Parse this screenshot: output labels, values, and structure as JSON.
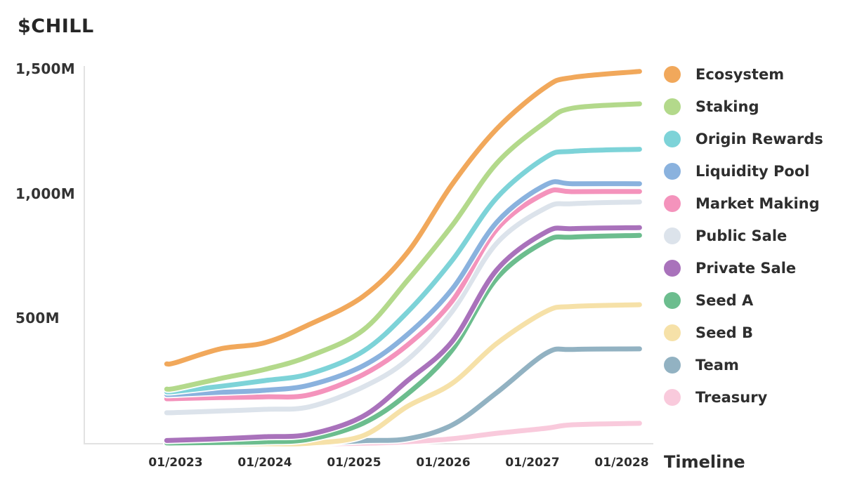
{
  "title": "$CHILL",
  "timeline_label": "Timeline",
  "legend": [
    {
      "label": "Ecosystem",
      "color": "#F1A85B"
    },
    {
      "label": "Staking",
      "color": "#B3D98B"
    },
    {
      "label": "Origin Rewards",
      "color": "#7DD3D8"
    },
    {
      "label": "Liquidity Pool",
      "color": "#8AB2DE"
    },
    {
      "label": "Market Making",
      "color": "#F493BC"
    },
    {
      "label": "Public Sale",
      "color": "#DCE3EB"
    },
    {
      "label": "Private Sale",
      "color": "#A972BB"
    },
    {
      "label": "Seed A",
      "color": "#6CBD8E"
    },
    {
      "label": "Seed B",
      "color": "#F6E1A8"
    },
    {
      "label": "Team",
      "color": "#92B2C2"
    },
    {
      "label": "Treasury",
      "color": "#F9CADC"
    }
  ],
  "chart_data": {
    "type": "line",
    "title": "$CHILL",
    "xlabel": "Timeline",
    "ylabel": "",
    "unit": "M tokens",
    "grid": false,
    "legend_position": "right",
    "ylim": [
      0,
      1550
    ],
    "y_ticks": [
      {
        "label": "1,500M",
        "value": 1500
      },
      {
        "label": "1,000M",
        "value": 1000
      },
      {
        "label": "500M",
        "value": 500
      }
    ],
    "x_ticks": [
      {
        "label": "01/2023",
        "x": 2023
      },
      {
        "label": "01/2024",
        "x": 2024
      },
      {
        "label": "01/2025",
        "x": 2025
      },
      {
        "label": "01/2026",
        "x": 2026
      },
      {
        "label": "01/2027",
        "x": 2027
      },
      {
        "label": "01/2028",
        "x": 2028
      }
    ],
    "x_range": [
      2022.9,
      2028.2
    ],
    "x": [
      2022.9,
      2023,
      2023.5,
      2024,
      2024.5,
      2025.1,
      2025.6,
      2026.1,
      2026.6,
      2027.15,
      2027.45,
      2028.2
    ],
    "series": [
      {
        "name": "Ecosystem",
        "color": "#F1A85B",
        "values": [
          320,
          325,
          380,
          405,
          478,
          590,
          767,
          1040,
          1262,
          1430,
          1468,
          1492
        ]
      },
      {
        "name": "Staking",
        "color": "#B3D98B",
        "values": [
          219,
          222,
          261,
          298,
          351,
          455,
          655,
          875,
          1124,
          1290,
          1345,
          1362
        ]
      },
      {
        "name": "Origin Rewards",
        "color": "#7DD3D8",
        "values": [
          208,
          210,
          230,
          253,
          280,
          370,
          528,
          735,
          986,
          1148,
          1172,
          1180
        ]
      },
      {
        "name": "Liquidity Pool",
        "color": "#8AB2DE",
        "values": [
          197,
          198,
          206,
          214,
          235,
          312,
          438,
          620,
          888,
          1038,
          1042,
          1042
        ]
      },
      {
        "name": "Market Making",
        "color": "#F493BC",
        "values": [
          180,
          181,
          185,
          188,
          196,
          277,
          396,
          572,
          860,
          1005,
          1010,
          1011
        ]
      },
      {
        "name": "Public Sale",
        "color": "#DCE3EB",
        "values": [
          124,
          125,
          131,
          138,
          148,
          227,
          337,
          530,
          804,
          945,
          962,
          969
        ]
      },
      {
        "name": "Private Sale",
        "color": "#A972BB",
        "values": [
          13,
          14,
          20,
          28,
          38,
          110,
          253,
          410,
          697,
          848,
          862,
          866
        ]
      },
      {
        "name": "Seed A",
        "color": "#6CBD8E",
        "values": [
          3,
          3,
          5,
          8,
          18,
          82,
          200,
          376,
          663,
          812,
          828,
          835
        ]
      },
      {
        "name": "Seed B",
        "color": "#F6E1A8",
        "values": [
          0,
          0,
          0,
          0,
          2,
          32,
          150,
          242,
          402,
          530,
          550,
          557
        ]
      },
      {
        "name": "Team",
        "color": "#92B2C2",
        "values": [
          0,
          0,
          0,
          0,
          1,
          12,
          20,
          75,
          205,
          362,
          378,
          380
        ]
      },
      {
        "name": "Treasury",
        "color": "#F9CADC",
        "values": [
          0,
          0,
          0,
          0,
          0,
          2,
          8,
          20,
          42,
          62,
          76,
          82
        ]
      }
    ]
  }
}
